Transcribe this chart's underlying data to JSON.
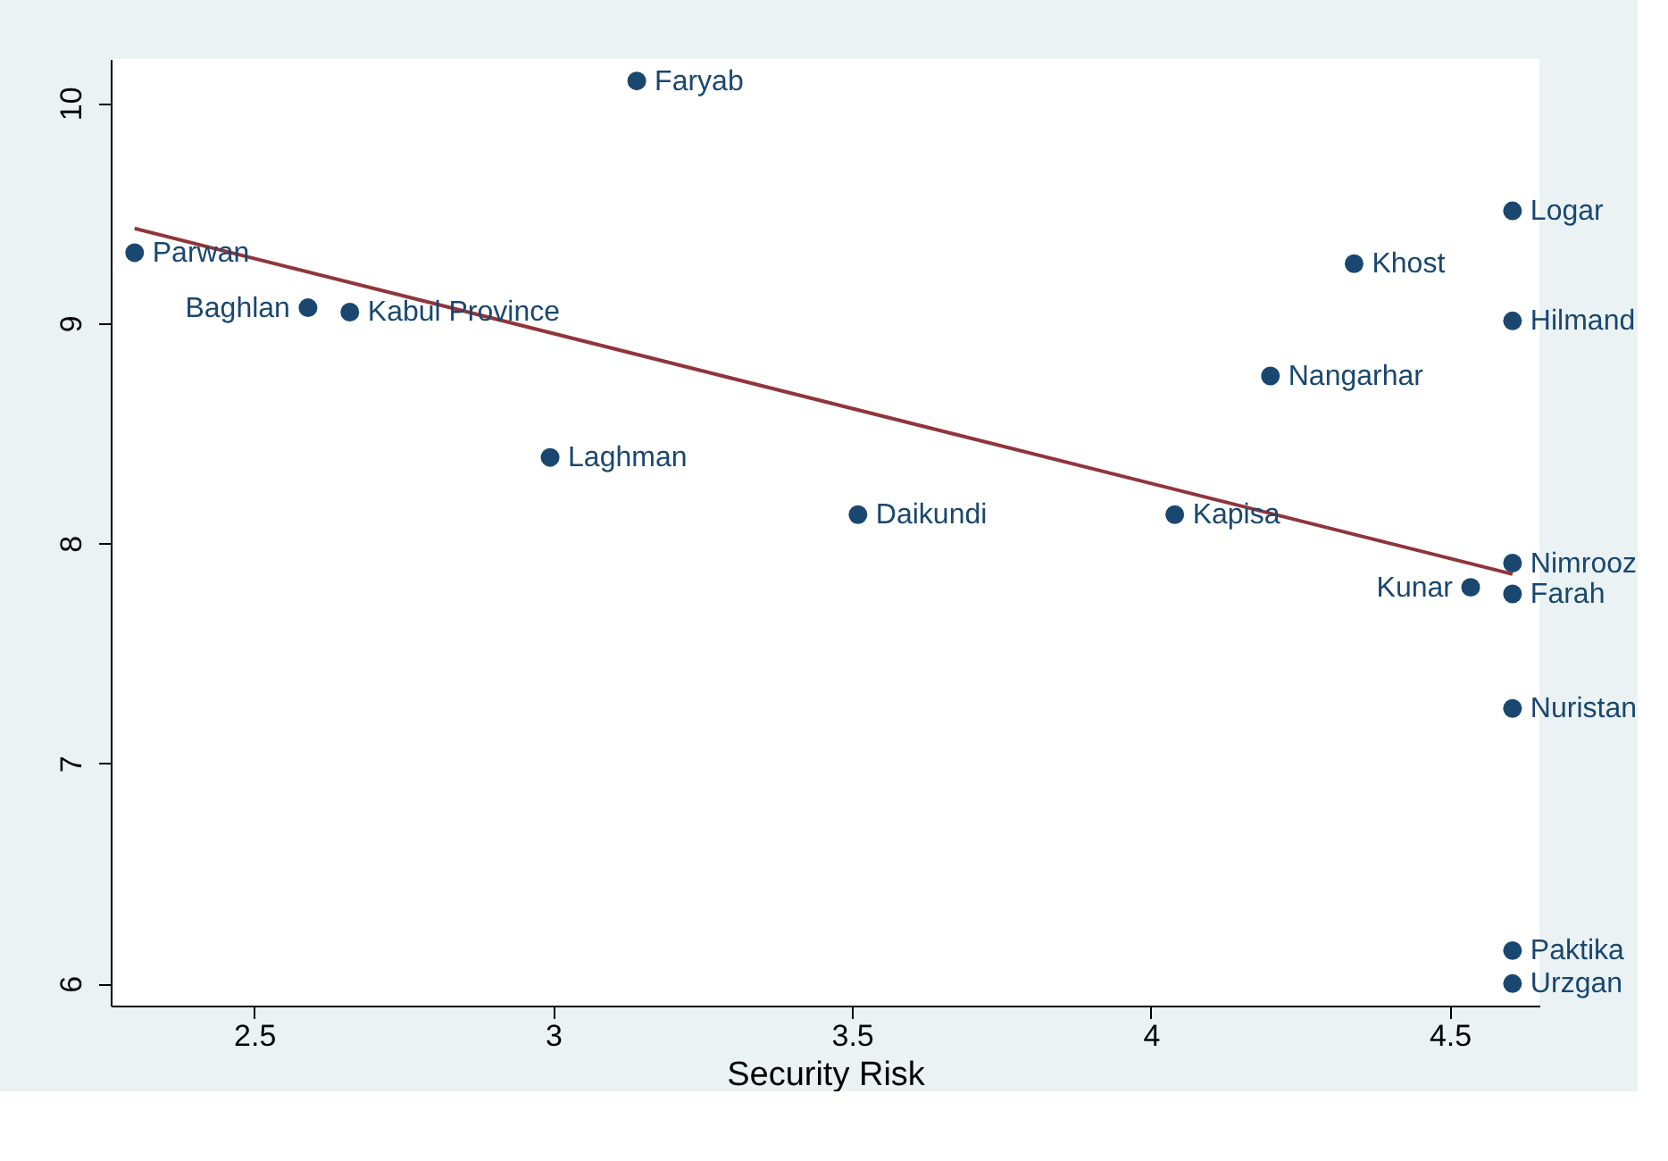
{
  "chart_data": {
    "type": "scatter",
    "xlabel": "Security Risk",
    "xlim": [
      2.26,
      4.65
    ],
    "ylim": [
      5.9,
      10.2
    ],
    "xticks": [
      2.5,
      3,
      3.5,
      4,
      4.5
    ],
    "yticks": [
      6,
      7,
      8,
      9,
      10
    ],
    "grid": false,
    "series": [
      {
        "marker": "circle",
        "color": "#1a476f",
        "x": [
          3.14,
          4.605,
          2.3,
          4.34,
          2.59,
          2.66,
          4.605,
          4.2,
          2.995,
          3.51,
          4.04,
          4.605,
          4.535,
          4.605,
          4.605,
          4.605,
          4.605
        ],
        "values": [
          10.1,
          9.51,
          9.32,
          9.27,
          9.07,
          9.05,
          9.01,
          8.76,
          8.39,
          8.13,
          8.13,
          7.91,
          7.8,
          7.77,
          7.25,
          6.15,
          6.0
        ]
      },
      {
        "type": "line",
        "color": "#90353b",
        "x": [
          2.3,
          4.605
        ],
        "values": [
          9.43,
          7.86
        ]
      }
    ],
    "annotations": [
      {
        "text": "Faryab",
        "x": 3.14,
        "y": 10.1
      },
      {
        "text": "Logar",
        "x": 4.605,
        "y": 9.51
      },
      {
        "text": "Parwan",
        "x": 2.3,
        "y": 9.32
      },
      {
        "text": "Khost",
        "x": 4.34,
        "y": 9.27
      },
      {
        "text": "Baghlan",
        "x": 2.59,
        "y": 9.07
      },
      {
        "text": "Kabul Province",
        "x": 2.66,
        "y": 9.05
      },
      {
        "text": "Hilmand",
        "x": 4.605,
        "y": 9.01
      },
      {
        "text": "Nangarhar",
        "x": 4.2,
        "y": 8.76
      },
      {
        "text": "Laghman",
        "x": 2.995,
        "y": 8.39
      },
      {
        "text": "Daikundi",
        "x": 3.51,
        "y": 8.13
      },
      {
        "text": "Kapisa",
        "x": 4.04,
        "y": 8.13
      },
      {
        "text": "Nimrooz",
        "x": 4.605,
        "y": 7.91
      },
      {
        "text": "Kunar",
        "x": 4.535,
        "y": 7.8
      },
      {
        "text": "Farah",
        "x": 4.605,
        "y": 7.77
      },
      {
        "text": "Nuristan",
        "x": 4.605,
        "y": 7.25
      },
      {
        "text": "Paktika",
        "x": 4.605,
        "y": 6.15
      },
      {
        "text": "Urzgan",
        "x": 4.605,
        "y": 6.0
      }
    ]
  }
}
